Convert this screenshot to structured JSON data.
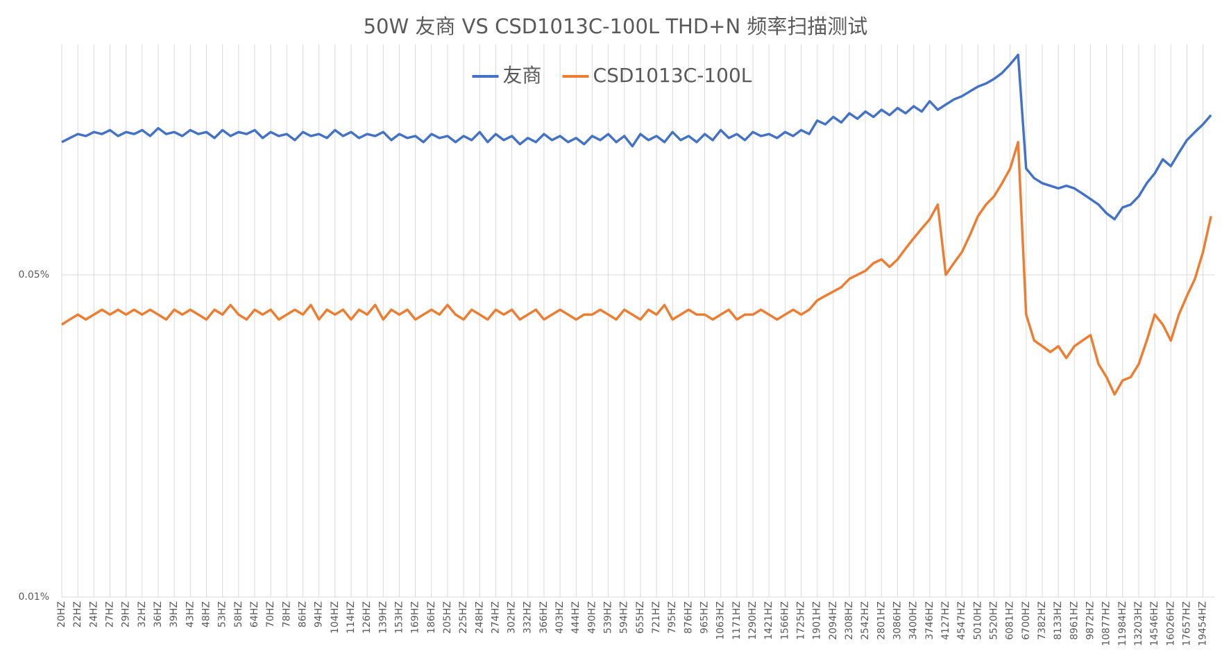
{
  "chart_data": {
    "type": "line",
    "title": "50W 友商 VS CSD1013C-100L THD+N 频率扫描测试",
    "categories": [
      "20HZ",
      null,
      "22HZ",
      null,
      "24HZ",
      null,
      "27HZ",
      null,
      "29HZ",
      null,
      "32HZ",
      null,
      "36HZ",
      null,
      "39HZ",
      null,
      "43HZ",
      null,
      "48HZ",
      null,
      "53HZ",
      null,
      "58HZ",
      null,
      "64HZ",
      null,
      "70HZ",
      null,
      "78HZ",
      null,
      "86HZ",
      null,
      "94HZ",
      null,
      "104HZ",
      null,
      "114HZ",
      null,
      "126HZ",
      null,
      "139HZ",
      null,
      "153HZ",
      null,
      "169HZ",
      null,
      "186HZ",
      null,
      "205HZ",
      null,
      "225HZ",
      null,
      "248HZ",
      null,
      "274HZ",
      null,
      "302HZ",
      null,
      "332HZ",
      null,
      "366HZ",
      null,
      "403HZ",
      null,
      "444HZ",
      null,
      "490HZ",
      null,
      "539HZ",
      null,
      "594HZ",
      null,
      "655HZ",
      null,
      "721HZ",
      null,
      "795HZ",
      null,
      "876HZ",
      null,
      "965HZ",
      null,
      "1063HZ",
      null,
      "1171HZ",
      null,
      "1290HZ",
      null,
      "1421HZ",
      null,
      "1566HZ",
      null,
      "1725HZ",
      null,
      "1901HZ",
      null,
      "2094HZ",
      null,
      "2308HZ",
      null,
      "2542HZ",
      null,
      "2801HZ",
      null,
      "3086HZ",
      null,
      "3400HZ",
      null,
      "3746HZ",
      null,
      "4127HZ",
      null,
      "4547HZ",
      null,
      "5010HZ",
      null,
      "5520HZ",
      null,
      "6081HZ",
      null,
      "6700HZ",
      null,
      "7382HZ",
      null,
      "8133HZ",
      null,
      "8961HZ",
      null,
      "9872HZ",
      null,
      "10877HZ",
      null,
      "11984HZ",
      null,
      "13203HZ",
      null,
      "14546HZ",
      null,
      "16026HZ",
      null,
      "17657HZ",
      null,
      "19454HZ",
      null
    ],
    "series": [
      {
        "name": "友商",
        "color": "#4472c4",
        "values": [
          0.097,
          0.099,
          0.101,
          0.1,
          0.102,
          0.101,
          0.103,
          0.1,
          0.102,
          0.101,
          0.103,
          0.1,
          0.104,
          0.101,
          0.102,
          0.1,
          0.103,
          0.101,
          0.102,
          0.099,
          0.103,
          0.1,
          0.102,
          0.101,
          0.103,
          0.099,
          0.102,
          0.1,
          0.101,
          0.098,
          0.102,
          0.1,
          0.101,
          0.099,
          0.103,
          0.1,
          0.102,
          0.099,
          0.101,
          0.1,
          0.102,
          0.098,
          0.101,
          0.099,
          0.1,
          0.097,
          0.101,
          0.099,
          0.1,
          0.097,
          0.1,
          0.098,
          0.102,
          0.097,
          0.101,
          0.098,
          0.1,
          0.096,
          0.099,
          0.097,
          0.101,
          0.098,
          0.1,
          0.097,
          0.099,
          0.096,
          0.1,
          0.098,
          0.101,
          0.097,
          0.1,
          0.095,
          0.101,
          0.098,
          0.1,
          0.097,
          0.102,
          0.098,
          0.1,
          0.097,
          0.101,
          0.098,
          0.103,
          0.099,
          0.101,
          0.098,
          0.102,
          0.1,
          0.101,
          0.099,
          0.102,
          0.1,
          0.103,
          0.101,
          0.108,
          0.106,
          0.11,
          0.107,
          0.112,
          0.109,
          0.113,
          0.11,
          0.114,
          0.111,
          0.115,
          0.112,
          0.116,
          0.113,
          0.119,
          0.114,
          0.117,
          0.12,
          0.122,
          0.125,
          0.128,
          0.13,
          0.133,
          0.137,
          0.143,
          0.15,
          0.085,
          0.081,
          0.079,
          0.078,
          0.077,
          0.078,
          0.077,
          0.075,
          0.073,
          0.071,
          0.068,
          0.066,
          0.07,
          0.071,
          0.074,
          0.079,
          0.083,
          0.089,
          0.086,
          0.092,
          0.098,
          0.102,
          0.106,
          0.111
        ]
      },
      {
        "name": "CSD1013C-100L",
        "color": "#ed7d31",
        "values": [
          0.039,
          0.04,
          0.041,
          0.04,
          0.041,
          0.042,
          0.041,
          0.042,
          0.041,
          0.042,
          0.041,
          0.042,
          0.041,
          0.04,
          0.042,
          0.041,
          0.042,
          0.041,
          0.04,
          0.042,
          0.041,
          0.043,
          0.041,
          0.04,
          0.042,
          0.041,
          0.042,
          0.04,
          0.041,
          0.042,
          0.041,
          0.043,
          0.04,
          0.042,
          0.041,
          0.042,
          0.04,
          0.042,
          0.041,
          0.043,
          0.04,
          0.042,
          0.041,
          0.042,
          0.04,
          0.041,
          0.042,
          0.041,
          0.043,
          0.041,
          0.04,
          0.042,
          0.041,
          0.04,
          0.042,
          0.041,
          0.042,
          0.04,
          0.041,
          0.042,
          0.04,
          0.041,
          0.042,
          0.041,
          0.04,
          0.041,
          0.041,
          0.042,
          0.041,
          0.04,
          0.042,
          0.041,
          0.04,
          0.042,
          0.041,
          0.043,
          0.04,
          0.041,
          0.042,
          0.041,
          0.041,
          0.04,
          0.041,
          0.042,
          0.04,
          0.041,
          0.041,
          0.042,
          0.041,
          0.04,
          0.041,
          0.042,
          0.041,
          0.042,
          0.044,
          0.045,
          0.046,
          0.047,
          0.049,
          0.05,
          0.051,
          0.053,
          0.054,
          0.052,
          0.054,
          0.057,
          0.06,
          0.063,
          0.066,
          0.071,
          0.05,
          0.053,
          0.056,
          0.061,
          0.067,
          0.071,
          0.074,
          0.079,
          0.085,
          0.097,
          0.041,
          0.036,
          0.035,
          0.034,
          0.035,
          0.033,
          0.035,
          0.036,
          0.037,
          0.032,
          0.03,
          0.0275,
          0.0295,
          0.03,
          0.032,
          0.036,
          0.041,
          0.039,
          0.036,
          0.041,
          0.045,
          0.049,
          0.056,
          0.067
        ]
      }
    ],
    "ylim": [
      0.01,
      0.158
    ],
    "yticks": [
      {
        "value": 0.01,
        "label": "0.01%"
      },
      {
        "value": 0.05,
        "label": "0.05%"
      }
    ],
    "log_y": true,
    "grid": true,
    "legend": "top"
  }
}
